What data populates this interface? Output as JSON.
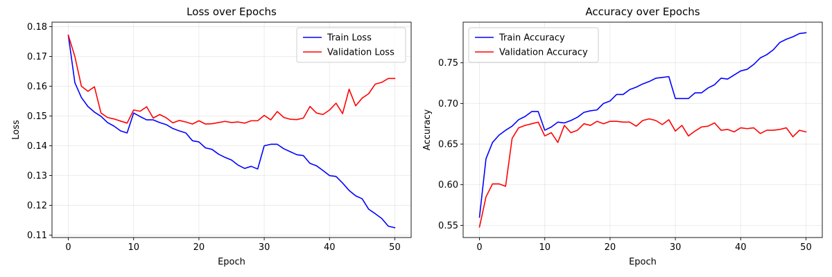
{
  "chart_data": [
    {
      "type": "line",
      "title": "Loss over Epochs",
      "xlabel": "Epoch",
      "ylabel": "Loss",
      "xlim": [
        -2.5,
        52.5
      ],
      "ylim": [
        0.1092,
        0.1815
      ],
      "xticks": [
        0,
        10,
        20,
        30,
        40,
        50
      ],
      "yticks": [
        0.11,
        0.12,
        0.13,
        0.14,
        0.15,
        0.16,
        0.17,
        0.18
      ],
      "tick_decimals": 2,
      "grid": true,
      "legend": "top-right",
      "x": [
        0,
        1,
        2,
        3,
        4,
        5,
        6,
        7,
        8,
        9,
        10,
        11,
        12,
        13,
        14,
        15,
        16,
        17,
        18,
        19,
        20,
        21,
        22,
        23,
        24,
        25,
        26,
        27,
        28,
        29,
        30,
        31,
        32,
        33,
        34,
        35,
        36,
        37,
        38,
        39,
        40,
        41,
        42,
        43,
        44,
        45,
        46,
        47,
        48,
        49,
        50
      ],
      "series": [
        {
          "name": "Train Loss",
          "color": "#0000ff",
          "values": [
            0.1771,
            0.1612,
            0.1562,
            0.1532,
            0.1513,
            0.1499,
            0.1478,
            0.1466,
            0.145,
            0.1443,
            0.151,
            0.1498,
            0.1487,
            0.1487,
            0.1478,
            0.1471,
            0.1458,
            0.145,
            0.1443,
            0.1417,
            0.1413,
            0.1393,
            0.1388,
            0.1372,
            0.1361,
            0.1352,
            0.1335,
            0.1324,
            0.1331,
            0.1322,
            0.14,
            0.1405,
            0.1405,
            0.139,
            0.138,
            0.137,
            0.1367,
            0.1341,
            0.1333,
            0.1317,
            0.13,
            0.1297,
            0.1275,
            0.125,
            0.1232,
            0.1222,
            0.1187,
            0.1172,
            0.1156,
            0.113,
            0.1125
          ]
        },
        {
          "name": "Validation Loss",
          "color": "#ff0000",
          "values": [
            0.1771,
            0.17,
            0.16,
            0.1583,
            0.1598,
            0.151,
            0.1495,
            0.149,
            0.1483,
            0.1476,
            0.152,
            0.1516,
            0.1531,
            0.1493,
            0.1505,
            0.1494,
            0.1477,
            0.1485,
            0.148,
            0.1473,
            0.1484,
            0.1473,
            0.1474,
            0.1478,
            0.1482,
            0.1478,
            0.148,
            0.1476,
            0.1484,
            0.1484,
            0.1502,
            0.1487,
            0.1515,
            0.1495,
            0.1489,
            0.1488,
            0.1493,
            0.1532,
            0.151,
            0.1505,
            0.152,
            0.1543,
            0.1508,
            0.159,
            0.1534,
            0.156,
            0.1575,
            0.1607,
            0.1613,
            0.1626,
            0.1626
          ]
        }
      ]
    },
    {
      "type": "line",
      "title": "Accuracy over Epochs",
      "xlabel": "Epoch",
      "ylabel": "Accuracy",
      "xlim": [
        -2.5,
        52.5
      ],
      "ylim": [
        0.535,
        0.8
      ],
      "xticks": [
        0,
        10,
        20,
        30,
        40,
        50
      ],
      "yticks": [
        0.55,
        0.6,
        0.65,
        0.7,
        0.75
      ],
      "tick_decimals": 2,
      "grid": true,
      "legend": "top-left",
      "x": [
        0,
        1,
        2,
        3,
        4,
        5,
        6,
        7,
        8,
        9,
        10,
        11,
        12,
        13,
        14,
        15,
        16,
        17,
        18,
        19,
        20,
        21,
        22,
        23,
        24,
        25,
        26,
        27,
        28,
        29,
        30,
        31,
        32,
        33,
        34,
        35,
        36,
        37,
        38,
        39,
        40,
        41,
        42,
        43,
        44,
        45,
        46,
        47,
        48,
        49,
        50
      ],
      "series": [
        {
          "name": "Train Accuracy",
          "color": "#0000ff",
          "values": [
            0.56,
            0.632,
            0.652,
            0.661,
            0.667,
            0.672,
            0.68,
            0.684,
            0.69,
            0.69,
            0.667,
            0.671,
            0.677,
            0.676,
            0.679,
            0.683,
            0.689,
            0.691,
            0.692,
            0.7,
            0.703,
            0.711,
            0.711,
            0.717,
            0.72,
            0.724,
            0.727,
            0.731,
            0.732,
            0.733,
            0.706,
            0.706,
            0.706,
            0.713,
            0.713,
            0.719,
            0.723,
            0.731,
            0.73,
            0.735,
            0.74,
            0.742,
            0.748,
            0.756,
            0.76,
            0.766,
            0.775,
            0.779,
            0.782,
            0.786,
            0.787
          ]
        },
        {
          "name": "Validation Accuracy",
          "color": "#ff0000",
          "values": [
            0.548,
            0.585,
            0.601,
            0.601,
            0.598,
            0.657,
            0.67,
            0.673,
            0.675,
            0.677,
            0.66,
            0.664,
            0.652,
            0.673,
            0.664,
            0.667,
            0.675,
            0.673,
            0.678,
            0.675,
            0.678,
            0.678,
            0.677,
            0.677,
            0.672,
            0.679,
            0.681,
            0.679,
            0.674,
            0.68,
            0.666,
            0.673,
            0.66,
            0.666,
            0.671,
            0.672,
            0.676,
            0.667,
            0.668,
            0.665,
            0.67,
            0.669,
            0.67,
            0.663,
            0.667,
            0.667,
            0.668,
            0.67,
            0.659,
            0.667,
            0.665
          ]
        }
      ]
    }
  ]
}
